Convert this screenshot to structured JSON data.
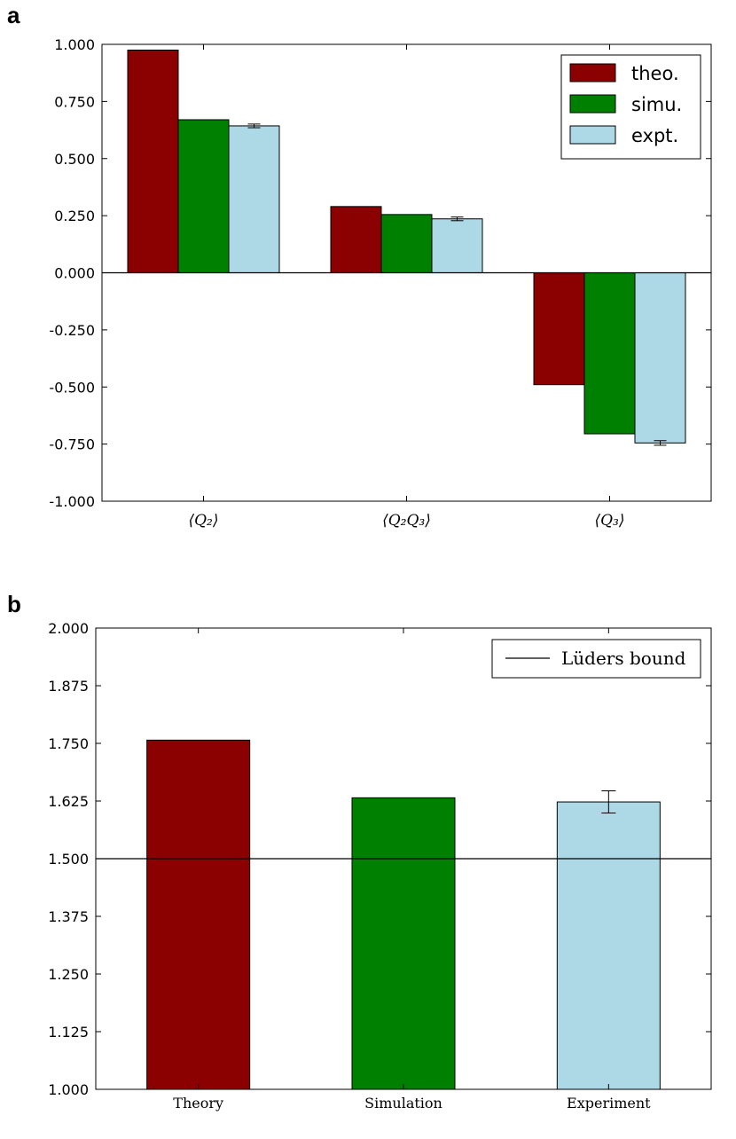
{
  "panels": {
    "a": {
      "letter": "a"
    },
    "b": {
      "letter": "b"
    }
  },
  "chart_data": [
    {
      "type": "bar",
      "panel": "a",
      "categories": [
        "⟨Q₂⟩",
        "⟨Q₂Q₃⟩",
        "⟨Q₃⟩"
      ],
      "series": [
        {
          "name": "theo.",
          "color": "#8b0000",
          "values": [
            0.975,
            0.29,
            -0.49
          ]
        },
        {
          "name": "simu.",
          "color": "#008000",
          "values": [
            0.67,
            0.255,
            -0.705
          ]
        },
        {
          "name": "expt.",
          "color": "#add8e6",
          "values": [
            0.643,
            0.236,
            -0.745
          ],
          "errors": [
            0.008,
            0.008,
            0.01
          ]
        }
      ],
      "ylim": [
        -1.0,
        1.0
      ],
      "yticks": [
        "1.000",
        "0.750",
        "0.500",
        "0.250",
        "0.000",
        "-0.250",
        "-0.500",
        "-0.750",
        "-1.000"
      ],
      "ytick_values": [
        1.0,
        0.75,
        0.5,
        0.25,
        0.0,
        -0.25,
        -0.5,
        -0.75,
        -1.0
      ],
      "zero_line": true,
      "legend_position": "top-right",
      "grid": false
    },
    {
      "type": "bar",
      "panel": "b",
      "categories": [
        "Theory",
        "Simulation",
        "Experiment"
      ],
      "values": [
        1.757,
        1.632,
        1.623
      ],
      "colors": [
        "#8b0000",
        "#008000",
        "#add8e6"
      ],
      "errors": [
        null,
        null,
        0.024
      ],
      "ylim": [
        1.0,
        2.0
      ],
      "yticks": [
        "2.000",
        "1.875",
        "1.750",
        "1.625",
        "1.500",
        "1.375",
        "1.250",
        "1.125",
        "1.000"
      ],
      "ytick_values": [
        2.0,
        1.875,
        1.75,
        1.625,
        1.5,
        1.375,
        1.25,
        1.125,
        1.0
      ],
      "hline": {
        "y": 1.5,
        "name": "Lüders bound"
      },
      "legend_position": "top-right",
      "grid": false
    }
  ]
}
